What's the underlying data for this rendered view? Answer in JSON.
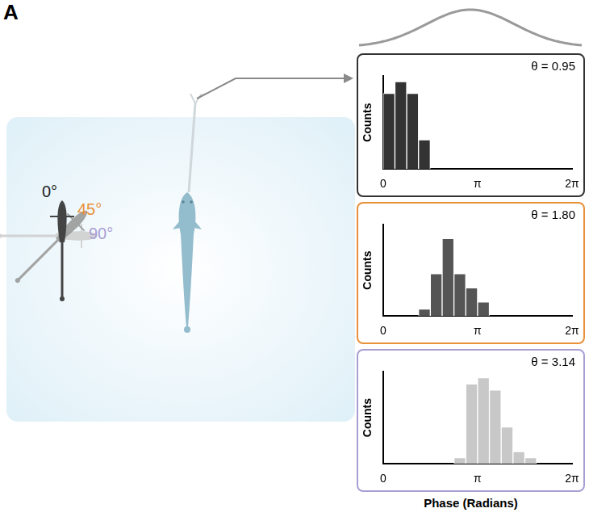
{
  "panel_label": "A",
  "diagram": {
    "angle_labels": [
      {
        "text": "0°",
        "color": "#222222"
      },
      {
        "text": "45°",
        "color": "#e8913a"
      },
      {
        "text": "90°",
        "color": "#a89ed3"
      }
    ]
  },
  "chart_data": [
    {
      "type": "histogram",
      "annotation": "θ = 0.95",
      "ylabel": "Counts",
      "bins": [
        0,
        0.3927,
        0.7854,
        1.1781,
        1.5708,
        1.9635,
        2.3562,
        2.7489,
        3.1416,
        3.5343,
        3.927,
        4.3197,
        4.7124,
        5.1051,
        5.4978,
        5.8905,
        6.2832
      ],
      "values": [
        13,
        15,
        13,
        5,
        0,
        0,
        0,
        0,
        0,
        0,
        0,
        0,
        0,
        0,
        0,
        0
      ],
      "color": "#333333",
      "xlim": [
        0,
        6.2832
      ],
      "xticks": [
        0,
        {
          "value": 3.1416,
          "label": "π"
        },
        {
          "value": 6.2832,
          "label": "2π"
        }
      ],
      "ylim": [
        0,
        16
      ],
      "tick_labels": "x"
    },
    {
      "type": "histogram",
      "annotation": "θ = 1.80",
      "ylabel": "Counts",
      "bins": [
        0,
        0.3927,
        0.7854,
        1.1781,
        1.5708,
        1.9635,
        2.3562,
        2.7489,
        3.1416,
        3.5343,
        3.927,
        4.3197,
        4.7124,
        5.1051,
        5.4978,
        5.8905,
        6.2832
      ],
      "values": [
        0,
        0,
        0,
        1,
        6,
        11,
        6,
        4,
        2,
        0,
        0,
        0,
        0,
        0,
        0,
        0
      ],
      "color": "#555555",
      "xlim": [
        0,
        6.2832
      ],
      "xticks": [
        0,
        {
          "value": 3.1416,
          "label": "π"
        },
        {
          "value": 6.2832,
          "label": "2π"
        }
      ],
      "ylim": [
        0,
        13
      ],
      "tick_labels": "x"
    },
    {
      "type": "histogram",
      "annotation": "θ = 3.14",
      "ylabel": "Counts",
      "xlabel": "Phase (Radians)",
      "bins": [
        0,
        0.3927,
        0.7854,
        1.1781,
        1.5708,
        1.9635,
        2.3562,
        2.7489,
        3.1416,
        3.5343,
        3.927,
        4.3197,
        4.7124,
        5.1051,
        5.4978,
        5.8905,
        6.2832
      ],
      "values": [
        0,
        0,
        0,
        0,
        0,
        0,
        1,
        13,
        14,
        12,
        6,
        2,
        1,
        0,
        0,
        0
      ],
      "color": "#c8c8c8",
      "xlim": [
        0,
        6.2832
      ],
      "xticks": [
        0,
        {
          "value": 3.1416,
          "label": "π"
        },
        {
          "value": 6.2832,
          "label": "2π"
        }
      ],
      "ylim": [
        0,
        15
      ],
      "tick_labels": "x"
    }
  ]
}
